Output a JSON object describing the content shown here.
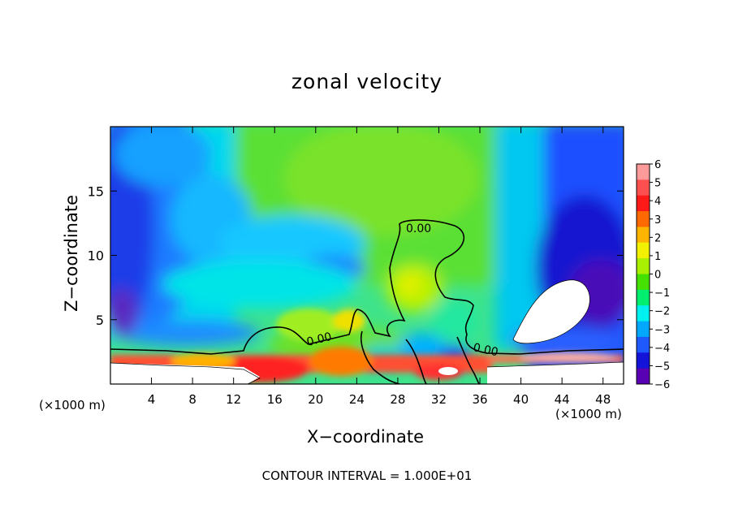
{
  "chart_data": {
    "type": "heatmap",
    "title": "zonal velocity",
    "xlabel": "X−coordinate",
    "ylabel": "Z−coordinate",
    "x_unit": "(×1000 m)",
    "y_unit": "(×1000 m)",
    "xlim": [
      0,
      50
    ],
    "ylim": [
      0,
      20
    ],
    "xticks": [
      4,
      8,
      12,
      16,
      20,
      24,
      28,
      32,
      36,
      40,
      44,
      48
    ],
    "yticks": [
      5,
      10,
      15
    ],
    "colorbar": {
      "levels": [
        6,
        5,
        4,
        3,
        2,
        1,
        0,
        -1,
        -2,
        -3,
        -4,
        -5,
        -6
      ],
      "labels": [
        "6",
        "5",
        "4",
        "3",
        "2",
        "1",
        "0",
        "−1",
        "−2",
        "−3",
        "−4",
        "−5",
        "−6"
      ],
      "colors": [
        "#ff9a9a",
        "#ff5050",
        "#ff1a1a",
        "#ff6a00",
        "#ffb400",
        "#f0f000",
        "#a8f000",
        "#46e000",
        "#00ee70",
        "#00f0f0",
        "#00a8ff",
        "#1e5aff",
        "#1414d8",
        "#5a00b4"
      ]
    },
    "contour_labels": [
      "0.00",
      "0.00",
      "0.00"
    ],
    "contour_interval": "CONTOUR INTERVAL = 1.000E+01"
  }
}
